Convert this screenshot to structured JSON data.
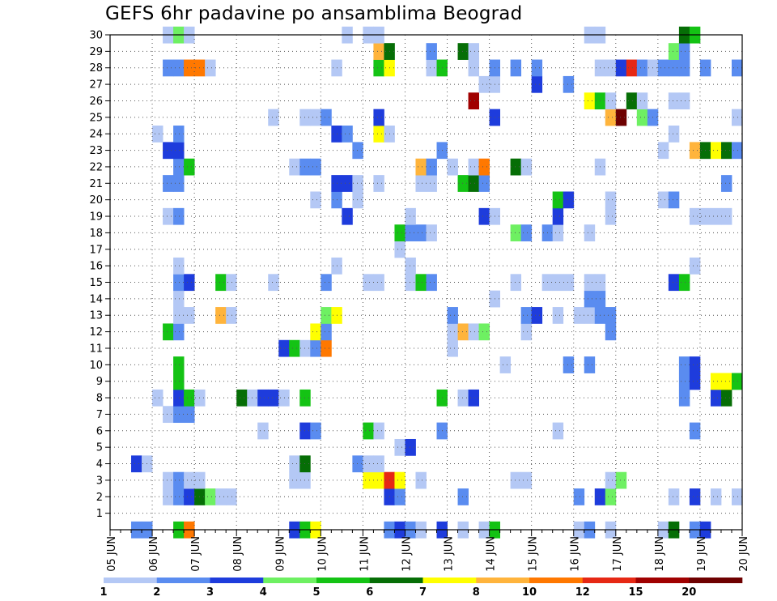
{
  "title": "GEFS 6hr padavine po ansamblima Beograd",
  "chart_data": {
    "type": "heatmap",
    "title": "GEFS 6hr padavine po ansamblima Beograd",
    "x_start": "05 JUN",
    "x_tick_labels": [
      "05 JUN",
      "06 JUN",
      "07 JUN",
      "08 JUN",
      "09 JUN",
      "10 JUN",
      "11 JUN",
      "12 JUN",
      "13 JUN",
      "14 JUN",
      "15 JUN",
      "16 JUN",
      "17 JUN",
      "18 JUN",
      "19 JUN",
      "20 JUN"
    ],
    "x_unit": "6-hour step",
    "y_tick_labels": [
      "1",
      "2",
      "3",
      "4",
      "5",
      "6",
      "7",
      "8",
      "9",
      "10",
      "11",
      "12",
      "13",
      "14",
      "15",
      "16",
      "17",
      "18",
      "19",
      "20",
      "21",
      "22",
      "23",
      "24",
      "25",
      "26",
      "27",
      "28",
      "29",
      "30"
    ],
    "ylim": [
      0,
      30
    ],
    "grid": true,
    "colorbar": {
      "colors": [
        "#b4c8f5",
        "#5a8cf0",
        "#1e3cdc",
        "#6ef062",
        "#14c314",
        "#066e06",
        "#ffff00",
        "#ffb43c",
        "#ff7800",
        "#e62814",
        "#a00000",
        "#6e0000"
      ],
      "labels": [
        "1",
        "2",
        "3",
        "4",
        "5",
        "6",
        "7",
        "8",
        "10",
        "12",
        "15",
        "20"
      ]
    },
    "cells": [
      [
        11,
        0,
        4
      ],
      [
        12,
        0,
        1
      ],
      [
        15,
        0,
        5
      ],
      [
        16,
        0,
        6
      ],
      [
        31,
        0,
        4
      ],
      [
        35,
        0,
        5
      ],
      [
        36,
        0,
        7
      ],
      [
        48,
        0,
        3
      ],
      [
        49,
        0,
        2
      ],
      [
        50,
        0,
        3
      ],
      [
        51,
        0,
        1
      ],
      [
        53,
        0,
        2
      ],
      [
        54,
        0,
        3
      ],
      [
        55,
        0,
        1
      ],
      [
        56,
        0,
        1
      ],
      [
        57,
        0,
        2
      ],
      [
        58,
        0,
        2
      ],
      [
        62,
        0,
        4
      ],
      [
        63,
        0,
        4
      ],
      [
        64,
        0,
        4
      ],
      [
        65,
        0,
        4
      ],
      [
        67,
        0,
        4
      ],
      [
        69,
        0,
        4
      ],
      [
        71,
        0,
        4
      ],
      [
        72,
        0,
        4
      ],
      [
        73,
        0,
        4
      ],
      [
        74,
        0,
        4
      ],
      [
        75,
        0,
        4
      ],
      [
        76,
        0,
        4
      ],
      [
        77,
        0,
        4
      ],
      [
        78,
        0,
        4
      ],
      [
        79,
        0,
        4
      ],
      [
        80,
        0,
        4
      ],
      [
        81,
        0,
        4
      ],
      [
        82,
        0,
        4
      ],
      [
        83,
        0,
        4
      ],
      [
        84,
        0,
        4
      ],
      [
        85,
        0,
        4
      ],
      [
        86,
        0,
        4
      ],
      [
        87,
        0,
        4
      ],
      [
        88,
        0,
        4
      ],
      [
        89,
        0,
        4
      ],
      [
        90,
        0,
        4
      ],
      [
        91,
        0,
        4
      ],
      [
        92,
        0,
        4
      ],
      [
        93,
        0,
        4
      ],
      [
        94,
        0,
        4
      ],
      [
        95,
        0,
        4
      ],
      [
        96,
        0,
        4
      ],
      [
        97,
        0,
        4
      ],
      [
        98,
        0,
        4
      ],
      [
        99,
        0,
        4
      ],
      [
        100,
        0,
        4
      ],
      [
        101,
        0,
        4
      ],
      [
        102,
        0,
        4
      ],
      [
        103,
        0,
        4
      ],
      [
        104,
        0,
        4
      ],
      [
        105,
        0,
        4
      ],
      [
        106,
        0,
        4
      ],
      [
        107,
        0,
        4
      ],
      [
        108,
        0,
        4
      ],
      [
        109,
        0,
        4
      ],
      [
        110,
        0,
        4
      ],
      [
        111,
        0,
        4
      ],
      [
        112,
        0,
        4
      ],
      [
        113,
        0,
        4
      ],
      [
        114,
        0,
        4
      ],
      [
        115,
        0,
        4
      ],
      [
        116,
        0,
        4
      ],
      [
        117,
        0,
        4
      ],
      [
        118,
        0,
        4
      ],
      [
        119,
        0,
        4
      ],
      [
        120,
        0,
        4
      ],
      [
        121,
        0,
        4
      ],
      [
        122,
        0,
        4
      ],
      [
        123,
        0,
        4
      ],
      [
        124,
        0,
        4
      ],
      [
        125,
        0,
        4
      ],
      [
        126,
        0,
        4
      ],
      [
        127,
        0,
        4
      ],
      [
        128,
        0,
        4
      ],
      [
        129,
        0,
        4
      ],
      [
        130,
        0,
        4
      ],
      [
        131,
        0,
        4
      ],
      [
        132,
        0,
        4
      ],
      [
        133,
        0,
        4
      ],
      [
        134,
        0,
        4
      ],
      [
        135,
        0,
        4
      ],
      [
        136,
        0,
        4
      ],
      [
        137,
        0,
        4
      ],
      [
        138,
        0,
        4
      ],
      [
        139,
        0,
        4
      ],
      [
        140,
        0,
        4
      ],
      [
        141,
        0,
        4
      ],
      [
        142,
        0,
        4
      ],
      [
        143,
        0,
        4
      ],
      [
        144,
        0,
        4
      ],
      [
        145,
        0,
        4
      ],
      [
        146,
        0,
        4
      ],
      [
        147,
        0,
        4
      ],
      [
        148,
        0,
        4
      ],
      [
        149,
        0,
        4
      ],
      [
        150,
        0,
        4
      ],
      [
        151,
        0,
        4
      ],
      [
        152,
        0,
        4
      ],
      [
        153,
        0,
        4
      ],
      [
        154,
        0,
        4
      ],
      [
        155,
        0,
        4
      ],
      [
        156,
        0,
        4
      ],
      [
        157,
        0,
        4
      ],
      [
        158,
        0,
        4
      ],
      [
        159,
        0,
        4
      ],
      [
        160,
        0,
        4
      ],
      [
        161,
        0,
        4
      ],
      [
        162,
        0,
        4
      ],
      [
        163,
        0,
        4
      ],
      [
        164,
        0,
        4
      ],
      [
        165,
        0,
        4
      ],
      [
        166,
        0,
        4
      ],
      [
        167,
        0,
        4
      ],
      [
        168,
        0,
        4
      ],
      [
        169,
        0,
        4
      ],
      [
        170,
        0,
        4
      ],
      [
        171,
        0,
        4
      ],
      [
        172,
        0,
        4
      ],
      [
        173,
        0,
        4
      ],
      [
        174,
        0,
        4
      ],
      [
        175,
        0,
        4
      ],
      [
        176,
        0,
        4
      ],
      [
        177,
        0,
        4
      ],
      [
        178,
        0,
        4
      ],
      [
        179,
        0,
        4
      ],
      [
        180,
        0,
        4
      ],
      [
        181,
        0,
        4
      ],
      [
        182,
        0,
        4
      ],
      [
        183,
        0,
        4
      ],
      [
        184,
        0,
        4
      ],
      [
        185,
        0,
        4
      ],
      [
        186,
        0,
        4
      ],
      [
        187,
        0,
        4
      ],
      [
        188,
        0,
        4
      ],
      [
        189,
        0,
        4
      ],
      [
        190,
        0,
        4
      ],
      [
        191,
        0,
        4
      ],
      [
        192,
        0,
        4
      ],
      [
        193,
        0,
        4
      ],
      [
        194,
        0,
        4
      ],
      [
        195,
        0,
        4
      ],
      [
        196,
        0,
        4
      ],
      [
        197,
        0,
        4
      ],
      [
        198,
        0,
        4
      ],
      [
        199,
        0,
        4
      ],
      [
        200,
        0,
        4
      ],
      [
        201,
        0,
        4
      ],
      [
        202,
        0,
        4
      ],
      [
        203,
        0,
        4
      ],
      [
        204,
        0,
        4
      ],
      [
        205,
        0,
        4
      ],
      [
        206,
        0,
        4
      ],
      [
        207,
        0,
        4
      ],
      [
        208,
        0,
        4
      ],
      [
        209,
        0,
        4
      ],
      [
        210,
        0,
        4
      ],
      [
        211,
        0,
        4
      ],
      [
        212,
        0,
        4
      ],
      [
        213,
        0,
        4
      ],
      [
        214,
        0,
        4
      ],
      [
        215,
        0,
        4
      ],
      [
        216,
        0,
        4
      ],
      [
        217,
        0,
        4
      ],
      [
        218,
        0,
        4
      ],
      [
        219,
        0,
        4
      ],
      [
        220,
        0,
        4
      ],
      [
        221,
        0,
        4
      ],
      [
        222,
        0,
        4
      ],
      [
        223,
        0,
        4
      ],
      [
        224,
        0,
        4
      ],
      [
        225,
        0,
        4
      ],
      [
        226,
        0,
        4
      ],
      [
        227,
        0,
        4
      ],
      [
        228,
        0,
        4
      ],
      [
        229,
        0,
        4
      ],
      [
        230,
        0,
        4
      ],
      [
        231,
        0,
        4
      ],
      [
        232,
        0,
        4
      ],
      [
        233,
        0,
        4
      ],
      [
        234,
        0,
        4
      ],
      [
        235,
        0,
        4
      ],
      [
        236,
        0,
        4
      ],
      [
        237,
        0,
        4
      ],
      [
        238,
        0,
        4
      ],
      [
        239,
        0,
        4
      ],
      [
        240,
        0,
        4
      ],
      [
        241,
        0,
        4
      ],
      [
        242,
        0,
        4
      ],
      [
        243,
        0,
        4
      ],
      [
        244,
        0,
        4
      ],
      [
        245,
        0,
        4
      ],
      [
        246,
        0,
        4
      ],
      [
        247,
        0,
        4
      ],
      [
        248,
        0,
        4
      ],
      [
        249,
        0,
        4
      ],
      [
        250,
        0,
        4
      ],
      [
        251,
        0,
        4
      ],
      [
        252,
        0,
        4
      ],
      [
        253,
        0,
        4
      ],
      [
        254,
        0,
        4
      ],
      [
        255,
        0,
        4
      ],
      [
        256,
        0,
        4
      ],
      [
        257,
        0,
        4
      ],
      [
        258,
        0,
        4
      ],
      [
        259,
        0,
        4
      ],
      [
        260,
        0,
        4
      ],
      [
        261,
        0,
        4
      ],
      [
        262,
        0,
        4
      ],
      [
        263,
        0,
        4
      ],
      [
        264,
        0,
        4
      ],
      [
        265,
        0,
        4
      ],
      [
        266,
        0,
        4
      ],
      [
        267,
        0,
        4
      ],
      [
        268,
        0,
        4
      ],
      [
        269,
        0,
        4
      ],
      [
        270,
        0,
        4
      ],
      [
        271,
        0,
        4
      ],
      [
        272,
        0,
        4
      ],
      [
        273,
        0,
        4
      ],
      [
        274,
        0,
        4
      ],
      [
        275,
        0,
        4
      ],
      [
        276,
        0,
        4
      ],
      [
        277,
        0,
        4
      ],
      [
        278,
        0,
        4
      ],
      [
        279,
        0,
        4
      ],
      [
        280,
        0,
        4
      ],
      [
        281,
        0,
        4
      ],
      [
        282,
        0,
        4
      ],
      [
        283,
        0,
        4
      ],
      [
        284,
        0,
        4
      ],
      [
        285,
        0,
        4
      ],
      [
        286,
        0,
        4
      ],
      [
        287,
        0,
        4
      ],
      [
        288,
        0,
        4
      ],
      [
        289,
        0,
        4
      ],
      [
        290,
        0,
        4
      ],
      [
        291,
        0,
        4
      ],
      [
        292,
        0,
        4
      ],
      [
        293,
        0,
        4
      ],
      [
        294,
        0,
        4
      ],
      [
        295,
        0,
        4
      ],
      [
        296,
        0,
        4
      ],
      [
        297,
        0,
        4
      ],
      [
        298,
        0,
        4
      ],
      [
        299,
        0,
        4
      ],
      [
        300,
        0,
        4
      ],
      [
        301,
        0,
        4
      ],
      [
        302,
        0,
        4
      ],
      [
        303,
        0,
        4
      ],
      [
        304,
        0,
        4
      ],
      [
        305,
        0,
        4
      ],
      [
        306,
        0,
        4
      ],
      [
        307,
        0,
        4
      ],
      [
        308,
        0,
        4
      ],
      [
        309,
        0,
        4
      ],
      [
        310,
        0,
        4
      ],
      [
        311,
        0,
        4
      ],
      [
        312,
        0,
        4
      ],
      [
        313,
        0,
        4
      ],
      [
        314,
        0,
        4
      ],
      [
        315,
        0,
        4
      ],
      [
        316,
        0,
        4
      ],
      [
        317,
        0,
        4
      ],
      [
        318,
        0,
        4
      ],
      [
        319,
        0,
        4
      ],
      [
        320,
        0,
        4
      ],
      [
        321,
        0,
        4
      ],
      [
        322,
        0,
        4
      ],
      [
        323,
        0,
        4
      ],
      [
        324,
        0,
        4
      ],
      [
        325,
        0,
        4
      ],
      [
        326,
        0,
        4
      ],
      [
        327,
        0,
        4
      ],
      [
        328,
        0,
        4
      ],
      [
        329,
        0,
        4
      ],
      [
        330,
        0,
        4
      ],
      [
        331,
        0,
        4
      ],
      [
        332,
        0,
        4
      ],
      [
        333,
        0,
        4
      ],
      [
        334,
        0,
        4
      ],
      [
        335,
        0,
        4
      ],
      [
        336,
        0,
        4
      ],
      [
        337,
        0,
        4
      ],
      [
        338,
        0,
        4
      ],
      [
        339,
        0,
        4
      ],
      [
        340,
        0,
        4
      ],
      [
        341,
        0,
        4
      ],
      [
        342,
        0,
        4
      ],
      [
        343,
        0,
        4
      ],
      [
        344,
        0,
        4
      ],
      [
        345,
        0,
        4
      ],
      [
        346,
        0,
        4
      ],
      [
        347,
        0,
        4
      ],
      [
        348,
        0,
        4
      ],
      [
        349,
        0,
        4
      ],
      [
        350,
        0,
        4
      ],
      [
        351,
        0,
        4
      ],
      [
        352,
        0,
        4
      ],
      [
        353,
        0,
        4
      ],
      [
        354,
        0,
        4
      ],
      [
        355,
        0,
        4
      ],
      [
        356,
        0,
        4
      ],
      [
        357,
        0,
        4
      ],
      [
        358,
        0,
        4
      ],
      [
        359,
        0,
        4
      ],
      [
        360,
        0,
        4
      ],
      [
        361,
        0,
        4
      ],
      [
        362,
        0,
        4
      ],
      [
        363,
        0,
        4
      ],
      [
        364,
        0,
        4
      ],
      [
        365,
        0,
        4
      ],
      [
        366,
        0,
        4
      ],
      [
        367,
        0,
        4
      ],
      [
        368,
        0,
        4
      ],
      [
        369,
        0,
        4
      ],
      [
        370,
        0,
        4
      ],
      [
        371,
        0,
        4
      ],
      [
        372,
        0,
        4
      ],
      [
        373,
        0,
        4
      ],
      [
        374,
        0,
        4
      ],
      [
        375,
        0,
        4
      ],
      [
        376,
        0,
        4
      ],
      [
        377,
        0,
        4
      ],
      [
        378,
        0,
        4
      ],
      [
        379,
        0,
        4
      ],
      [
        380,
        0,
        4
      ],
      [
        381,
        0,
        4
      ],
      [
        382,
        0,
        4
      ],
      [
        383,
        0,
        4
      ],
      [
        384,
        0,
        4
      ],
      [
        385,
        0,
        4
      ],
      [
        386,
        0,
        4
      ],
      [
        387,
        0,
        4
      ],
      [
        388,
        0,
        4
      ],
      [
        389,
        0,
        4
      ],
      [
        390,
        0,
        4
      ],
      [
        391,
        0,
        4
      ],
      [
        392,
        0,
        4
      ],
      [
        393,
        0,
        4
      ],
      [
        394,
        0,
        4
      ],
      [
        395,
        0,
        4
      ],
      [
        396,
        0,
        4
      ],
      [
        397,
        0,
        4
      ],
      [
        398,
        0,
        4
      ],
      [
        399,
        0,
        4
      ],
      [
        400,
        0,
        4
      ]
    ]
  }
}
